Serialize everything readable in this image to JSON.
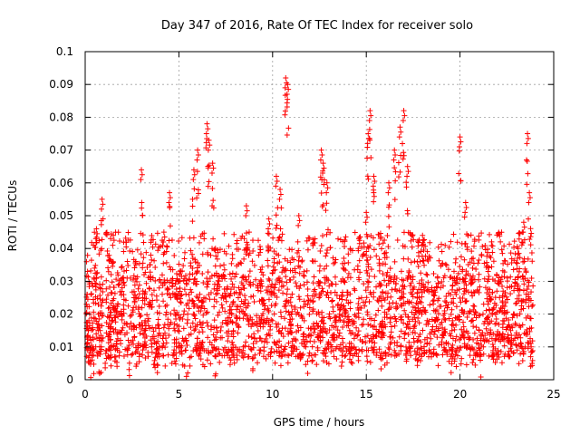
{
  "chart_data": {
    "type": "scatter",
    "title": "Day 347 of 2016, Rate Of TEC Index for receiver solo",
    "xlabel": "GPS time / hours",
    "ylabel": "ROTI / TECUs",
    "xlim": [
      0,
      25
    ],
    "ylim": [
      0,
      0.1
    ],
    "x_ticks": [
      0,
      5,
      10,
      15,
      20,
      25
    ],
    "x_tick_labels": [
      "0",
      "5",
      "10",
      "15",
      "20",
      "25"
    ],
    "y_ticks": [
      0,
      0.01,
      0.02,
      0.03,
      0.04,
      0.05,
      0.06,
      0.07,
      0.08,
      0.09,
      0.1
    ],
    "y_tick_labels": [
      "0",
      "0.01",
      "0.02",
      "0.03",
      "0.04",
      "0.05",
      "0.06",
      "0.07",
      "0.08",
      "0.09",
      "0.1"
    ],
    "grid": true,
    "marker": "+",
    "color": "#ff0000",
    "series": [
      {
        "name": "ROTI",
        "description_points": [
          {
            "x": 0.1,
            "y": 0.026
          },
          {
            "x": 0.2,
            "y": 0.018
          },
          {
            "x": 0.3,
            "y": 0.012
          },
          {
            "x": 0.4,
            "y": 0.009
          },
          {
            "x": 0.5,
            "y": 0.034
          },
          {
            "x": 0.6,
            "y": 0.046
          },
          {
            "x": 0.7,
            "y": 0.02
          },
          {
            "x": 0.8,
            "y": 0.015
          },
          {
            "x": 0.9,
            "y": 0.055
          },
          {
            "x": 1.1,
            "y": 0.008
          },
          {
            "x": 1.3,
            "y": 0.022
          },
          {
            "x": 1.5,
            "y": 0.044
          },
          {
            "x": 1.7,
            "y": 0.014
          },
          {
            "x": 2.0,
            "y": 0.031
          },
          {
            "x": 2.3,
            "y": 0.012
          },
          {
            "x": 2.6,
            "y": 0.025
          },
          {
            "x": 3.0,
            "y": 0.064
          },
          {
            "x": 3.2,
            "y": 0.018
          },
          {
            "x": 3.5,
            "y": 0.038
          },
          {
            "x": 3.8,
            "y": 0.011
          },
          {
            "x": 4.2,
            "y": 0.045
          },
          {
            "x": 4.5,
            "y": 0.057
          },
          {
            "x": 4.8,
            "y": 0.02
          },
          {
            "x": 5.1,
            "y": 0.033
          },
          {
            "x": 5.4,
            "y": 0.012
          },
          {
            "x": 5.8,
            "y": 0.064
          },
          {
            "x": 6.0,
            "y": 0.07
          },
          {
            "x": 6.2,
            "y": 0.024
          },
          {
            "x": 6.5,
            "y": 0.078
          },
          {
            "x": 6.6,
            "y": 0.073
          },
          {
            "x": 6.8,
            "y": 0.066
          },
          {
            "x": 7.0,
            "y": 0.016
          },
          {
            "x": 7.4,
            "y": 0.035
          },
          {
            "x": 7.8,
            "y": 0.009
          },
          {
            "x": 8.2,
            "y": 0.028
          },
          {
            "x": 8.6,
            "y": 0.053
          },
          {
            "x": 9.0,
            "y": 0.014
          },
          {
            "x": 9.4,
            "y": 0.03
          },
          {
            "x": 9.8,
            "y": 0.049
          },
          {
            "x": 10.2,
            "y": 0.062
          },
          {
            "x": 10.4,
            "y": 0.058
          },
          {
            "x": 10.7,
            "y": 0.092
          },
          {
            "x": 10.8,
            "y": 0.09
          },
          {
            "x": 11.0,
            "y": 0.02
          },
          {
            "x": 11.4,
            "y": 0.05
          },
          {
            "x": 11.8,
            "y": 0.013
          },
          {
            "x": 12.2,
            "y": 0.027
          },
          {
            "x": 12.6,
            "y": 0.07
          },
          {
            "x": 12.7,
            "y": 0.066
          },
          {
            "x": 12.9,
            "y": 0.06
          },
          {
            "x": 13.3,
            "y": 0.019
          },
          {
            "x": 13.8,
            "y": 0.037
          },
          {
            "x": 14.2,
            "y": 0.011
          },
          {
            "x": 14.6,
            "y": 0.043
          },
          {
            "x": 15.0,
            "y": 0.051
          },
          {
            "x": 15.1,
            "y": 0.075
          },
          {
            "x": 15.2,
            "y": 0.082
          },
          {
            "x": 15.4,
            "y": 0.062
          },
          {
            "x": 15.8,
            "y": 0.016
          },
          {
            "x": 16.2,
            "y": 0.06
          },
          {
            "x": 16.5,
            "y": 0.07
          },
          {
            "x": 16.8,
            "y": 0.077
          },
          {
            "x": 17.0,
            "y": 0.082
          },
          {
            "x": 17.2,
            "y": 0.065
          },
          {
            "x": 17.6,
            "y": 0.022
          },
          {
            "x": 18.0,
            "y": 0.044
          },
          {
            "x": 18.4,
            "y": 0.014
          },
          {
            "x": 18.8,
            "y": 0.031
          },
          {
            "x": 19.2,
            "y": 0.024
          },
          {
            "x": 19.6,
            "y": 0.018
          },
          {
            "x": 20.0,
            "y": 0.074
          },
          {
            "x": 20.3,
            "y": 0.054
          },
          {
            "x": 20.7,
            "y": 0.037
          },
          {
            "x": 21.1,
            "y": 0.012
          },
          {
            "x": 21.5,
            "y": 0.033
          },
          {
            "x": 21.9,
            "y": 0.02
          },
          {
            "x": 22.3,
            "y": 0.027
          },
          {
            "x": 22.7,
            "y": 0.015
          },
          {
            "x": 23.1,
            "y": 0.04
          },
          {
            "x": 23.4,
            "y": 0.048
          },
          {
            "x": 23.6,
            "y": 0.075
          },
          {
            "x": 23.7,
            "y": 0.057
          },
          {
            "x": 23.8,
            "y": 0.01
          }
        ],
        "dense_band": {
          "x_range": [
            0,
            23.9
          ],
          "y_core": [
            0.007,
            0.032
          ],
          "y_upper_typical": 0.045
        },
        "gap": [
          0.95,
          1.1
        ]
      }
    ]
  }
}
